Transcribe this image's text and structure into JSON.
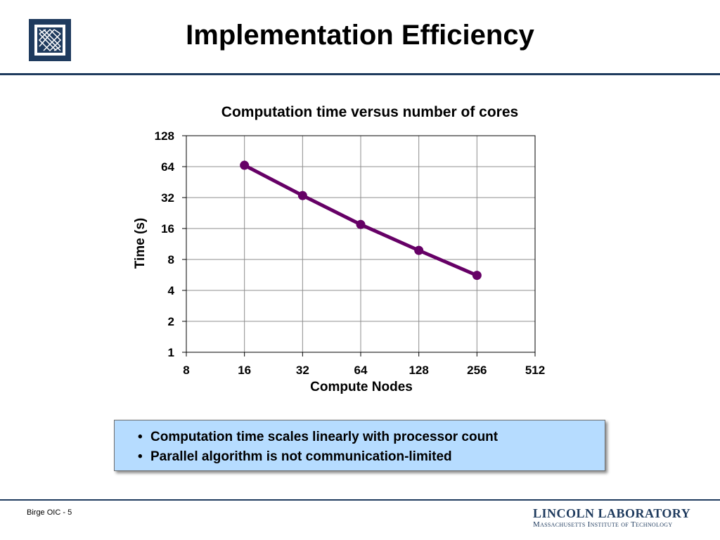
{
  "slide": {
    "title": "Implementation Efficiency",
    "footer_left": "Birge OIC - 5",
    "footer_right_line1": "LINCOLN LABORATORY",
    "footer_right_line2": "Massachusetts Institute of Technology"
  },
  "callout": {
    "bullets": [
      "Computation time scales linearly with processor count",
      "Parallel algorithm is not communication-limited"
    ]
  },
  "colors": {
    "series": "#660066",
    "rule": "#1f3b5e",
    "callout_bg": "#b6dcff"
  },
  "chart_data": {
    "type": "line",
    "title": "Computation time versus number of cores",
    "xlabel": "Compute Nodes",
    "ylabel": "Time (s)",
    "x_scale": "log2",
    "y_scale": "log2",
    "xlim": [
      8,
      512
    ],
    "ylim": [
      1,
      128
    ],
    "x_ticks": [
      "8",
      "16",
      "32",
      "64",
      "128",
      "256",
      "512"
    ],
    "y_ticks": [
      "1",
      "2",
      "4",
      "8",
      "16",
      "32",
      "64",
      "128"
    ],
    "grid": true,
    "series": [
      {
        "x": [
          16,
          32,
          64,
          128,
          256
        ],
        "y": [
          66,
          33.5,
          17.5,
          9.8,
          5.6
        ]
      }
    ]
  }
}
